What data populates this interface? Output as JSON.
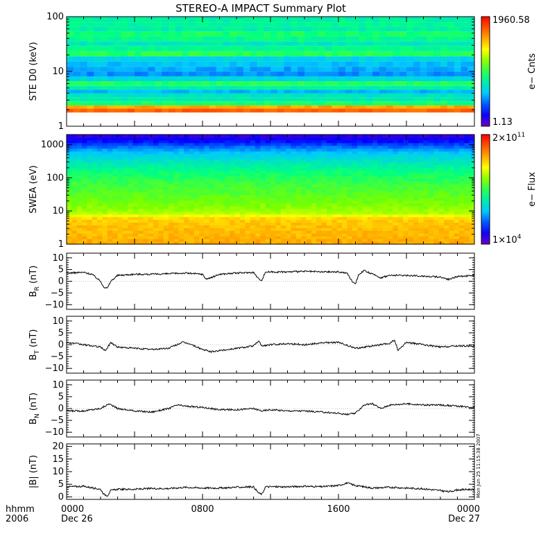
{
  "title": "STEREO-A IMPACT Summary Plot",
  "time_axis": {
    "row1_label": "hhmm",
    "row2_label": "2006",
    "ticks": [
      {
        "hour": 0,
        "time": "0000",
        "date": "Dec 26"
      },
      {
        "hour": 8,
        "time": "0800",
        "date": ""
      },
      {
        "hour": 16,
        "time": "1600",
        "date": ""
      },
      {
        "hour": 24,
        "time": "0000",
        "date": "Dec 27"
      }
    ]
  },
  "timestamp": "Mon Jun 25 11:15:38 2007",
  "chart_data": [
    {
      "type": "heatmap",
      "ylabel": "STE D0 (keV)",
      "yscale": "log",
      "ylim": [
        1,
        100
      ],
      "yticks": [
        1,
        10,
        100
      ],
      "ytick_labels": [
        "1",
        "10",
        "100"
      ],
      "xlim_hours": [
        0,
        24
      ],
      "colorbar": {
        "label": "e− Cnts",
        "max_label": "1960.58",
        "min_label": "1.13",
        "min": 1.13,
        "max": 1960.58,
        "scale": "log"
      },
      "bands": [
        {
          "energy_keV": 95,
          "color_index": 0.4
        },
        {
          "energy_keV": 86,
          "color_index": 0.42
        },
        {
          "energy_keV": 72,
          "color_index": 0.43
        },
        {
          "energy_keV": 60,
          "color_index": 0.41
        },
        {
          "energy_keV": 48,
          "color_index": 0.47
        },
        {
          "energy_keV": 40,
          "color_index": 0.44
        },
        {
          "energy_keV": 32,
          "color_index": 0.39
        },
        {
          "energy_keV": 26,
          "color_index": 0.43
        },
        {
          "energy_keV": 21,
          "color_index": 0.49
        },
        {
          "energy_keV": 17,
          "color_index": 0.33
        },
        {
          "energy_keV": 13.5,
          "color_index": 0.3
        },
        {
          "energy_keV": 11,
          "color_index": 0.27
        },
        {
          "energy_keV": 9,
          "color_index": 0.25
        },
        {
          "energy_keV": 7.4,
          "color_index": 0.33
        },
        {
          "energy_keV": 6,
          "color_index": 0.48
        },
        {
          "energy_keV": 5,
          "color_index": 0.41
        },
        {
          "energy_keV": 4.3,
          "color_index": 0.29
        },
        {
          "energy_keV": 3.7,
          "color_index": 0.37
        },
        {
          "energy_keV": 3.1,
          "color_index": 0.39
        },
        {
          "energy_keV": 2.6,
          "color_index": 0.47
        },
        {
          "energy_keV": 2.2,
          "color_index": 0.8
        },
        {
          "energy_keV": 2.0,
          "color_index": 0.88
        }
      ]
    },
    {
      "type": "heatmap",
      "ylabel": "SWEA (eV)",
      "yscale": "log",
      "ylim": [
        1,
        2000
      ],
      "yticks": [
        1,
        10,
        100,
        1000
      ],
      "ytick_labels": [
        "1",
        "10",
        "100",
        "1000"
      ],
      "xlim_hours": [
        0,
        24
      ],
      "colorbar": {
        "label": "e− Flux",
        "max_label": "2×10",
        "max_exp": "11",
        "min_label": "1×10",
        "min_exp": "4",
        "min": 10000,
        "max": 200000000000,
        "scale": "log"
      },
      "energy_profile": [
        {
          "energy_eV": 1.0,
          "color_index": 0.8
        },
        {
          "energy_eV": 2.0,
          "color_index": 0.78
        },
        {
          "energy_eV": 4.0,
          "color_index": 0.77
        },
        {
          "energy_eV": 6.5,
          "color_index": 0.74
        },
        {
          "energy_eV": 8.0,
          "color_index": 0.64
        },
        {
          "energy_eV": 12,
          "color_index": 0.6
        },
        {
          "energy_eV": 25,
          "color_index": 0.56
        },
        {
          "energy_eV": 60,
          "color_index": 0.52
        },
        {
          "energy_eV": 150,
          "color_index": 0.46
        },
        {
          "energy_eV": 300,
          "color_index": 0.38
        },
        {
          "energy_eV": 600,
          "color_index": 0.3
        },
        {
          "energy_eV": 1000,
          "color_index": 0.18
        },
        {
          "energy_eV": 1500,
          "color_index": 0.1
        },
        {
          "energy_eV": 2000,
          "color_index": 0.06
        }
      ]
    },
    {
      "type": "line",
      "ylabel": "B",
      "ylabel_sub": "R",
      "ylabel_unit": "(nT)",
      "ylim": [
        -12,
        12
      ],
      "yticks": [
        -10,
        -5,
        0,
        5,
        10
      ],
      "ytick_labels": [
        "−10",
        "−5",
        "0",
        "5",
        "10"
      ],
      "xlim_hours": [
        0,
        24
      ],
      "series": [
        {
          "values_hours": [
            0,
            1,
            1.5,
            2,
            2.2,
            2.4,
            2.6,
            3,
            4,
            5,
            6,
            7,
            8,
            8.2,
            8.5,
            9,
            10,
            11,
            11.3,
            11.5,
            11.7,
            12,
            13,
            14,
            15,
            16,
            16.5,
            16.8,
            17,
            17.2,
            17.5,
            18,
            18.5,
            19,
            20,
            21,
            22,
            22.5,
            23,
            24
          ],
          "values": [
            3.5,
            3.8,
            3.0,
            0.0,
            -2.5,
            -3.0,
            0.0,
            2.5,
            3.0,
            3.0,
            3.2,
            3.5,
            3.0,
            1.0,
            1.5,
            3.0,
            3.5,
            3.8,
            1.0,
            0.5,
            4.0,
            4.0,
            4.0,
            4.2,
            4.0,
            4.0,
            3.5,
            0.0,
            -1.0,
            3.0,
            4.5,
            3.0,
            1.5,
            2.5,
            2.5,
            2.2,
            1.8,
            0.8,
            2.0,
            2.5
          ]
        }
      ]
    },
    {
      "type": "line",
      "ylabel": "B",
      "ylabel_sub": "T",
      "ylabel_unit": "(nT)",
      "ylim": [
        -12,
        12
      ],
      "yticks": [
        -10,
        -5,
        0,
        5,
        10
      ],
      "ytick_labels": [
        "−10",
        "−5",
        "0",
        "5",
        "10"
      ],
      "xlim_hours": [
        0,
        24
      ],
      "series": [
        {
          "values_hours": [
            0,
            1,
            2,
            2.3,
            2.6,
            3,
            4,
            5,
            6,
            6.8,
            7.2,
            8,
            8.5,
            9,
            10,
            11,
            11.3,
            11.5,
            12,
            13,
            14,
            15,
            16,
            16.8,
            17,
            18,
            19,
            19.3,
            19.5,
            20,
            21,
            22,
            23,
            24
          ],
          "values": [
            1.0,
            0.0,
            -1.0,
            -2.5,
            1.0,
            -1.0,
            -1.5,
            -2.0,
            -1.5,
            1.0,
            0.5,
            -2.0,
            -3.0,
            -2.5,
            -1.5,
            -0.5,
            1.5,
            -0.5,
            0.0,
            0.5,
            0.0,
            0.8,
            1.0,
            -1.0,
            -1.5,
            -0.5,
            0.5,
            2.0,
            -2.5,
            1.0,
            0.0,
            -1.0,
            -0.5,
            -0.5
          ]
        }
      ]
    },
    {
      "type": "line",
      "ylabel": "B",
      "ylabel_sub": "N",
      "ylabel_unit": "(nT)",
      "ylim": [
        -12,
        12
      ],
      "yticks": [
        -10,
        -5,
        0,
        5,
        10
      ],
      "ytick_labels": [
        "−10",
        "−5",
        "0",
        "5",
        "10"
      ],
      "xlim_hours": [
        0,
        24
      ],
      "series": [
        {
          "values_hours": [
            0,
            1,
            2,
            2.5,
            3,
            4,
            5,
            6,
            6.5,
            7,
            8,
            9,
            10,
            11,
            11.5,
            12,
            13,
            14,
            15,
            16,
            16.5,
            17,
            17.5,
            18,
            18.5,
            19,
            20,
            21,
            22,
            23,
            24
          ],
          "values": [
            -1.0,
            -1.0,
            0.0,
            2.0,
            0.0,
            -1.0,
            -1.5,
            0.0,
            1.5,
            1.0,
            0.5,
            -0.5,
            -0.5,
            0.0,
            -1.0,
            -0.5,
            -1.0,
            -1.0,
            -1.5,
            -2.0,
            -2.5,
            -2.0,
            1.5,
            2.0,
            0.0,
            1.5,
            2.0,
            1.5,
            1.5,
            1.0,
            0.5
          ]
        }
      ]
    },
    {
      "type": "line",
      "ylabel": "|B|",
      "ylabel_unit": "(nT)",
      "ylim": [
        -1,
        21
      ],
      "yticks": [
        0,
        5,
        10,
        15,
        20
      ],
      "ytick_labels": [
        "0",
        "5",
        "10",
        "15",
        "20"
      ],
      "xlim_hours": [
        0,
        24
      ],
      "series": [
        {
          "values_hours": [
            0,
            1,
            2,
            2.2,
            2.4,
            2.6,
            3,
            4,
            5,
            6,
            7,
            8,
            9,
            10,
            11,
            11.3,
            11.5,
            11.7,
            12,
            13,
            14,
            15,
            16,
            16.5,
            17,
            17.5,
            18,
            19,
            20,
            21,
            22,
            22.5,
            23,
            24
          ],
          "values": [
            4.0,
            4.2,
            3.0,
            1.0,
            0.5,
            2.5,
            3.0,
            3.0,
            3.3,
            3.3,
            3.8,
            3.5,
            3.5,
            3.8,
            4.0,
            1.5,
            1.0,
            4.0,
            4.0,
            4.0,
            4.2,
            4.0,
            4.5,
            5.5,
            4.5,
            4.0,
            3.5,
            3.8,
            3.5,
            3.2,
            2.5,
            2.0,
            2.8,
            3.0
          ]
        }
      ]
    }
  ]
}
